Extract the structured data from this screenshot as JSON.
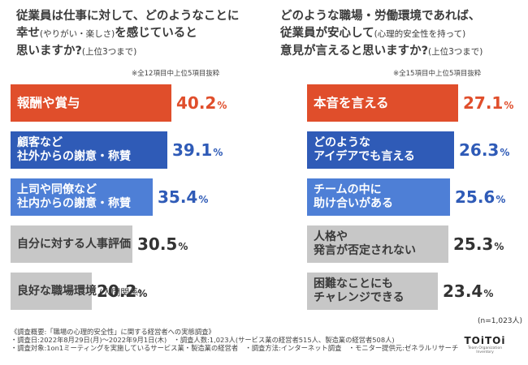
{
  "colors": {
    "orange": "#e04e2b",
    "blue_dark": "#2f5bb7",
    "blue_light": "#4e7fd6",
    "gray": "#c7c7c7",
    "val_orange": "#e04e2b",
    "val_blue": "#2f5bb7",
    "val_gray": "#333333"
  },
  "questions": {
    "q1": {
      "line1": "従業員は仕事に対して、どのようなことに",
      "line2_main": "幸せ",
      "line2_paren": "(やりがい・楽しさ)",
      "line2_rest": "を感じていると",
      "line3_main": "思いますか?",
      "line3_paren": "(上位3つまで)"
    },
    "q2": {
      "line1": "どのような職場・労働環境であれば、",
      "line2_main": "従業員が安心して",
      "line2_paren": "(心理的安全性を持って)",
      "line3_main": "意見が言えると思いますか?",
      "line3_paren": "(上位3つまで)"
    }
  },
  "notes": {
    "q1": "※全12項目中上位5項目抜粋",
    "q2": "※全15項目中上位5項目抜粋"
  },
  "chart_data": [
    {
      "type": "bar",
      "orientation": "horizontal",
      "title": "従業員は仕事に対して、どのようなことに幸せ(やりがい・楽しさ)を感じていると思いますか?(上位3つまで)",
      "unit": "%",
      "categories": [
        [
          "報酬や賞与"
        ],
        [
          "顧客など",
          "社外からの謝意・称賛"
        ],
        [
          "上司や同僚など",
          "社内からの謝意・称賛"
        ],
        [
          "自分に対する人事評価"
        ],
        [
          "良好な職場環境",
          "(人間関係)"
        ]
      ],
      "values": [
        40.2,
        39.1,
        35.4,
        30.5,
        20.2
      ],
      "value_labels": [
        "40.2",
        "39.1",
        "35.4",
        "30.5",
        "20.2"
      ],
      "styles": [
        "orange",
        "blue_dark",
        "blue_light",
        "gray",
        "gray"
      ],
      "xlim": [
        0,
        45
      ]
    },
    {
      "type": "bar",
      "orientation": "horizontal",
      "title": "どのような職場・労働環境であれば、従業員が安心して(心理的安全性を持って)意見が言えると思いますか?(上位3つまで)",
      "unit": "%",
      "categories": [
        [
          "本音を言える"
        ],
        [
          "どのような",
          "アイデアでも言える"
        ],
        [
          "チームの中に",
          "助け合いがある"
        ],
        [
          "人格や",
          "発言が否定されない"
        ],
        [
          "困難なことにも",
          "チャレンジできる"
        ]
      ],
      "values": [
        27.1,
        26.3,
        25.6,
        25.3,
        23.4
      ],
      "value_labels": [
        "27.1",
        "26.3",
        "25.6",
        "25.3",
        "23.4"
      ],
      "styles": [
        "orange",
        "blue_dark",
        "blue_light",
        "gray",
        "gray"
      ],
      "xlim": [
        0,
        32.3
      ]
    }
  ],
  "n_count": "(n=1,023人)",
  "footer": {
    "line1": "《調査概要:「職場の心理的安全性」に関する経営者への実態調査》",
    "line2": "・調査日:2022年8月29日(月)〜2022年9月1日(木)　・調査人数:1,023人(サービス業の経営者515人、製造業の経営者508人)",
    "line3": "・調査対象:1on1ミーティングを実施しているサービス業・製造業の経営者　・調査方法:インターネット調査　・モニター提供元:ゼネラルリサーチ"
  },
  "logo": {
    "main": "TOiTOi",
    "sub": "Team Organization Inventory"
  }
}
